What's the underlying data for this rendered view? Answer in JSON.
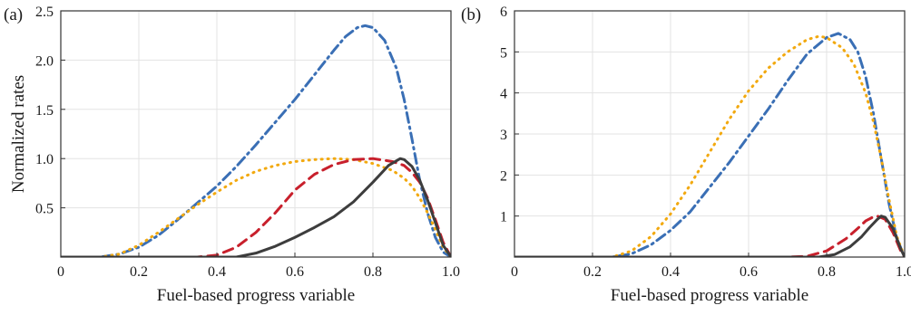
{
  "chart_data": [
    {
      "panel_label": "(a)",
      "type": "line",
      "xlabel": "Fuel-based progress variable",
      "ylabel": "Normalized rates",
      "xlim": [
        0,
        1
      ],
      "ylim": [
        0,
        2.5
      ],
      "xticks": [
        0,
        0.2,
        0.4,
        0.6,
        0.8,
        1.0
      ],
      "xtick_labels": [
        "0",
        "0.2",
        "0.4",
        "0.6",
        "0.8",
        "1.0"
      ],
      "yticks": [
        0.5,
        1.0,
        1.5,
        2.0,
        2.5
      ],
      "ytick_labels": [
        "0.5",
        "1.0",
        "1.5",
        "2.0",
        "2.5"
      ],
      "grid": true,
      "series": [
        {
          "color": "#3a6fb5",
          "style": "dashdot",
          "x": [
            0,
            0.1,
            0.15,
            0.2,
            0.25,
            0.3,
            0.35,
            0.4,
            0.45,
            0.5,
            0.55,
            0.6,
            0.65,
            0.7,
            0.73,
            0.76,
            0.78,
            0.8,
            0.83,
            0.86,
            0.88,
            0.9,
            0.92,
            0.94,
            0.96,
            0.98,
            1.0
          ],
          "y": [
            0,
            0,
            0.03,
            0.1,
            0.22,
            0.38,
            0.55,
            0.72,
            0.92,
            1.14,
            1.37,
            1.6,
            1.85,
            2.1,
            2.24,
            2.33,
            2.35,
            2.33,
            2.2,
            1.92,
            1.6,
            1.2,
            0.78,
            0.45,
            0.2,
            0.05,
            0
          ]
        },
        {
          "color": "#f2a90f",
          "style": "dotted",
          "x": [
            0,
            0.1,
            0.15,
            0.2,
            0.25,
            0.3,
            0.35,
            0.4,
            0.45,
            0.5,
            0.55,
            0.6,
            0.65,
            0.7,
            0.75,
            0.8,
            0.85,
            0.88,
            0.9,
            0.92,
            0.94,
            0.96,
            0.98,
            1.0
          ],
          "y": [
            0,
            0,
            0.03,
            0.12,
            0.25,
            0.39,
            0.53,
            0.66,
            0.78,
            0.87,
            0.93,
            0.97,
            0.99,
            1.0,
            0.99,
            0.95,
            0.88,
            0.8,
            0.72,
            0.6,
            0.45,
            0.28,
            0.1,
            0
          ]
        },
        {
          "color": "#c8202c",
          "style": "dashed",
          "x": [
            0,
            0.35,
            0.4,
            0.45,
            0.5,
            0.55,
            0.6,
            0.65,
            0.7,
            0.75,
            0.8,
            0.85,
            0.88,
            0.9,
            0.92,
            0.94,
            0.96,
            0.98,
            1.0
          ],
          "y": [
            0,
            0,
            0.02,
            0.1,
            0.25,
            0.45,
            0.68,
            0.84,
            0.94,
            0.99,
            1.0,
            0.97,
            0.93,
            0.86,
            0.76,
            0.6,
            0.38,
            0.15,
            0
          ]
        },
        {
          "color": "#3d3d3d",
          "style": "solid",
          "x": [
            0,
            0.45,
            0.5,
            0.55,
            0.6,
            0.65,
            0.7,
            0.75,
            0.8,
            0.84,
            0.87,
            0.88,
            0.9,
            0.92,
            0.94,
            0.96,
            0.98,
            1.0
          ],
          "y": [
            0,
            0,
            0.04,
            0.11,
            0.2,
            0.3,
            0.41,
            0.56,
            0.76,
            0.93,
            1.0,
            0.99,
            0.92,
            0.78,
            0.58,
            0.35,
            0.12,
            0
          ]
        }
      ]
    },
    {
      "panel_label": "(b)",
      "type": "line",
      "xlabel": "Fuel-based progress variable",
      "ylabel": "",
      "xlim": [
        0,
        1
      ],
      "ylim": [
        0,
        6
      ],
      "xticks": [
        0,
        0.2,
        0.4,
        0.6,
        0.8,
        1.0
      ],
      "xtick_labels": [
        "0",
        "0.2",
        "0.4",
        "0.6",
        "0.8",
        "1.0"
      ],
      "yticks": [
        1,
        2,
        3,
        4,
        5,
        6
      ],
      "ytick_labels": [
        "1",
        "2",
        "3",
        "4",
        "5",
        "6"
      ],
      "grid": true,
      "series": [
        {
          "color": "#3a6fb5",
          "style": "dashdot",
          "x": [
            0,
            0.25,
            0.3,
            0.35,
            0.4,
            0.45,
            0.5,
            0.55,
            0.6,
            0.65,
            0.7,
            0.75,
            0.8,
            0.83,
            0.86,
            0.88,
            0.9,
            0.92,
            0.94,
            0.96,
            0.98,
            1.0
          ],
          "y": [
            0,
            0,
            0.08,
            0.3,
            0.65,
            1.1,
            1.7,
            2.3,
            2.95,
            3.6,
            4.3,
            4.95,
            5.35,
            5.45,
            5.3,
            5.0,
            4.4,
            3.5,
            2.4,
            1.3,
            0.45,
            0
          ]
        },
        {
          "color": "#f2a90f",
          "style": "dotted",
          "x": [
            0,
            0.25,
            0.3,
            0.35,
            0.4,
            0.45,
            0.5,
            0.55,
            0.6,
            0.65,
            0.7,
            0.75,
            0.78,
            0.8,
            0.84,
            0.87,
            0.9,
            0.92,
            0.94,
            0.96,
            0.98,
            1.0
          ],
          "y": [
            0,
            0,
            0.15,
            0.5,
            1.05,
            1.75,
            2.55,
            3.35,
            4.05,
            4.6,
            5.0,
            5.3,
            5.38,
            5.35,
            5.1,
            4.7,
            4.0,
            3.3,
            2.4,
            1.4,
            0.5,
            0
          ]
        },
        {
          "color": "#c8202c",
          "style": "dashed",
          "x": [
            0,
            0.7,
            0.75,
            0.8,
            0.85,
            0.88,
            0.9,
            0.92,
            0.93,
            0.95,
            0.97,
            0.99,
            1.0
          ],
          "y": [
            0,
            0,
            0.02,
            0.15,
            0.45,
            0.7,
            0.88,
            0.98,
            1.0,
            0.92,
            0.6,
            0.15,
            0
          ]
        },
        {
          "color": "#3d3d3d",
          "style": "solid",
          "x": [
            0,
            0.78,
            0.82,
            0.86,
            0.89,
            0.91,
            0.93,
            0.94,
            0.95,
            0.97,
            0.99,
            1.0
          ],
          "y": [
            0,
            0,
            0.06,
            0.25,
            0.5,
            0.72,
            0.92,
            1.0,
            0.97,
            0.7,
            0.2,
            0
          ]
        }
      ]
    }
  ]
}
